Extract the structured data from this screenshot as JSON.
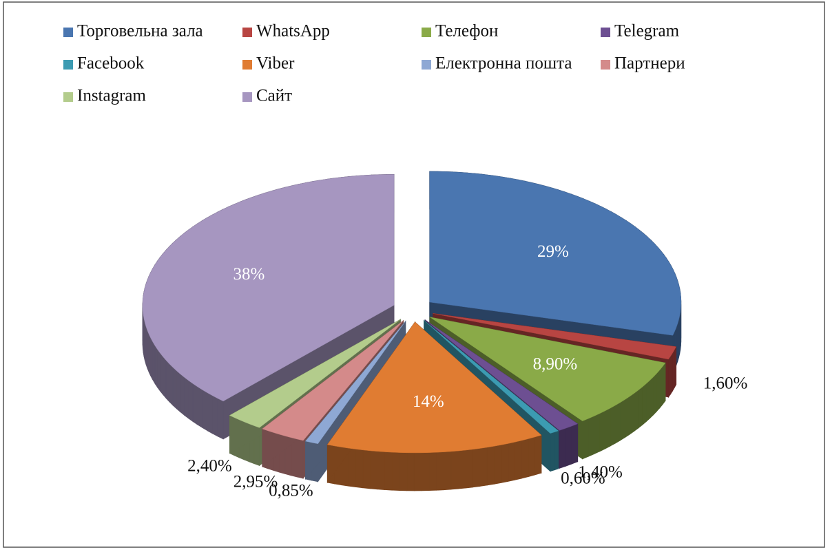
{
  "chart_data": {
    "type": "pie",
    "categories": [
      "Торговельна зала",
      "WhatsApp",
      "Телефон",
      "Telegram",
      "Facebook",
      "Viber",
      "Електронна пошта",
      "Партнери",
      "Instagram",
      "Сайт"
    ],
    "values": [
      29,
      1.6,
      8.9,
      1.4,
      0.6,
      14,
      0.85,
      2.95,
      2.4,
      38
    ],
    "value_labels": [
      "29%",
      "1,60%",
      "8,90%",
      "1,40%",
      "0,60%",
      "14%",
      "0,85%",
      "2,95%",
      "2,40%",
      "38%"
    ],
    "colors": [
      "#4a76b0",
      "#b84542",
      "#8aaa48",
      "#6d4f92",
      "#3c9bb2",
      "#e07c32",
      "#8ea8d4",
      "#d48a8a",
      "#b3cc8c",
      "#a696c0"
    ],
    "legend": "top"
  }
}
